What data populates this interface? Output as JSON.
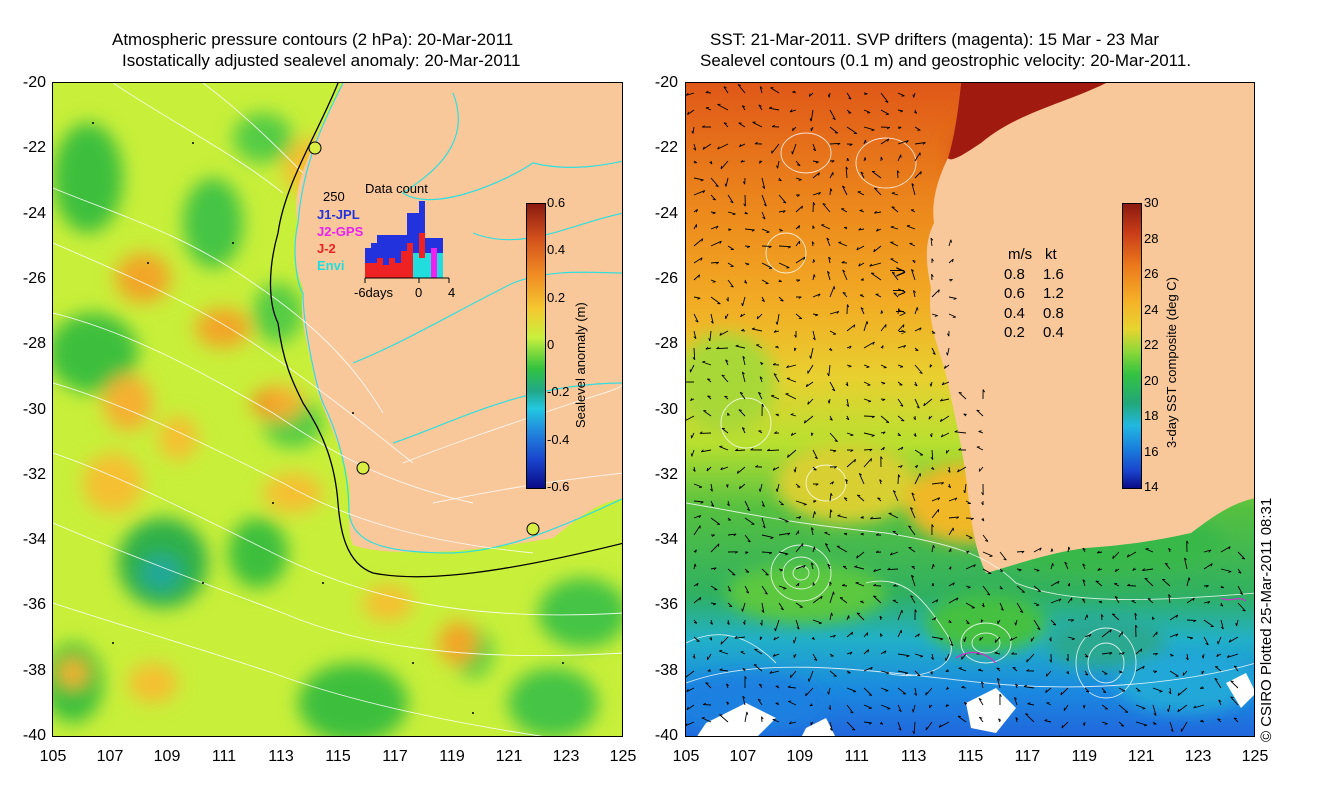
{
  "left_panel": {
    "title_line1": "Atmospheric pressure contours (2 hPa): 20-Mar-2011",
    "title_line2": "Isostatically adjusted sealevel anomaly: 20-Mar-2011",
    "colorbar_label": "Sealevel anomaly (m)",
    "colorbar_ticks": [
      "0.6",
      "0.4",
      "0.2",
      "0",
      "-0.2",
      "-0.4",
      "-0.6"
    ],
    "inset": {
      "title": "Data count",
      "max_label": "250",
      "x_labels": [
        "-6days",
        "0",
        "4"
      ],
      "legend": [
        {
          "label": "J1-JPL",
          "color": "#2233dd"
        },
        {
          "label": "J2-GPS",
          "color": "#ee22ee"
        },
        {
          "label": "J-2",
          "color": "#ee2222"
        },
        {
          "label": "Envi",
          "color": "#22dddd"
        }
      ]
    }
  },
  "right_panel": {
    "title_line1": "SST: 21-Mar-2011. SVP drifters (magenta): 15 Mar - 23 Mar",
    "title_line2": "Sealevel contours (0.1 m) and geostrophic velocity: 20-Mar-2011.",
    "colorbar_label": "3-day SST composite (deg C)",
    "colorbar_ticks": [
      "30",
      "28",
      "26",
      "24",
      "22",
      "20",
      "18",
      "16",
      "14"
    ],
    "velocity_legend": {
      "header_ms": "m/s",
      "header_kt": "kt",
      "rows": [
        {
          "ms": "0.8",
          "kt": "1.6"
        },
        {
          "ms": "0.6",
          "kt": "1.2"
        },
        {
          "ms": "0.4",
          "kt": "0.8"
        },
        {
          "ms": "0.2",
          "kt": "0.4"
        }
      ]
    }
  },
  "axes": {
    "y_ticks": [
      "-20",
      "-22",
      "-24",
      "-26",
      "-28",
      "-30",
      "-32",
      "-34",
      "-36",
      "-38",
      "-40"
    ],
    "x_ticks": [
      "105",
      "107",
      "109",
      "111",
      "113",
      "115",
      "117",
      "119",
      "121",
      "123",
      "125"
    ]
  },
  "credit": "© CSIRO Plotted 25-Mar-2011 08:31",
  "colors": {
    "land": "#f9c89a",
    "ocean_base": "#c8f03c",
    "contour": "#ffffff",
    "coast_cyan": "#33dddd"
  }
}
